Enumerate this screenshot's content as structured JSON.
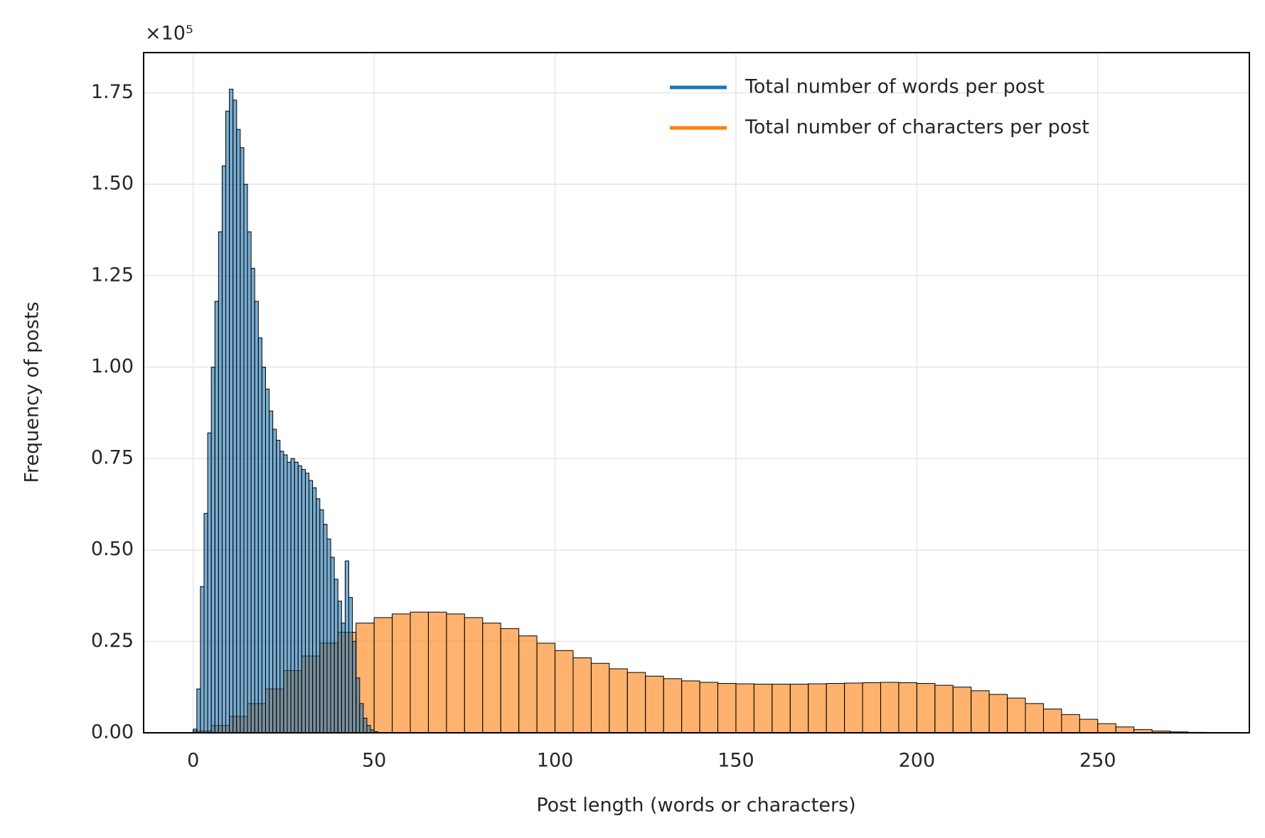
{
  "chart_data": {
    "type": "histogram",
    "xlabel": "Post length (words or characters)",
    "ylabel": "Frequency of posts",
    "offset_label": "×10⁵",
    "xlim": [
      -13.7,
      291.9
    ],
    "ylim": [
      0,
      186000
    ],
    "xticks": [
      0,
      50,
      100,
      150,
      200,
      250
    ],
    "yticks": [
      {
        "value": 0,
        "label": "0.00"
      },
      {
        "value": 25000,
        "label": "0.25"
      },
      {
        "value": 50000,
        "label": "0.50"
      },
      {
        "value": 75000,
        "label": "0.75"
      },
      {
        "value": 100000,
        "label": "1.00"
      },
      {
        "value": 125000,
        "label": "1.25"
      },
      {
        "value": 150000,
        "label": "1.50"
      },
      {
        "value": 175000,
        "label": "1.75"
      }
    ],
    "grid": true,
    "legend": "upper right",
    "series": [
      {
        "name": "Total number of words per post",
        "color": "#1f77b4",
        "bins": [
          0,
          1,
          2,
          3,
          4,
          5,
          6,
          7,
          8,
          9,
          10,
          11,
          12,
          13,
          14,
          15,
          16,
          17,
          18,
          19,
          20,
          21,
          22,
          23,
          24,
          25,
          26,
          27,
          28,
          29,
          30,
          31,
          32,
          33,
          34,
          35,
          36,
          37,
          38,
          39,
          40,
          41,
          42,
          43,
          44,
          45,
          46,
          47,
          48,
          49,
          50,
          51
        ],
        "values": [
          1000,
          12000,
          40000,
          60000,
          82000,
          100000,
          118000,
          137000,
          155000,
          170000,
          176000,
          173000,
          165000,
          160000,
          150000,
          137000,
          127000,
          118000,
          108000,
          100000,
          94000,
          88000,
          83000,
          80000,
          77000,
          76000,
          74000,
          75000,
          74000,
          73000,
          72000,
          71000,
          69000,
          67000,
          64000,
          61000,
          57000,
          53000,
          48000,
          42000,
          36000,
          30000,
          47000,
          37000,
          25000,
          15000,
          8000,
          4000,
          2000,
          800,
          300
        ]
      },
      {
        "name": "Total number of characters per post",
        "color": "#ff7f0e",
        "bins": [
          0,
          5,
          10,
          15,
          20,
          25,
          30,
          35,
          40,
          45,
          50,
          55,
          60,
          65,
          70,
          75,
          80,
          85,
          90,
          95,
          100,
          105,
          110,
          115,
          120,
          125,
          130,
          135,
          140,
          145,
          150,
          155,
          160,
          165,
          170,
          175,
          180,
          185,
          190,
          195,
          200,
          205,
          210,
          215,
          220,
          225,
          230,
          235,
          240,
          245,
          250,
          255,
          260,
          265,
          270,
          275,
          280,
          285
        ],
        "values": [
          500,
          2000,
          4500,
          8000,
          12000,
          17000,
          21000,
          24500,
          27500,
          30000,
          31500,
          32500,
          33000,
          33000,
          32500,
          31500,
          30000,
          28500,
          26500,
          24500,
          22500,
          20500,
          19000,
          17500,
          16500,
          15500,
          14800,
          14200,
          13800,
          13500,
          13400,
          13300,
          13300,
          13300,
          13400,
          13500,
          13600,
          13700,
          13800,
          13700,
          13500,
          13000,
          12500,
          11500,
          10500,
          9500,
          8000,
          6500,
          5000,
          3700,
          2500,
          1600,
          900,
          500,
          250,
          120,
          50
        ]
      }
    ]
  }
}
